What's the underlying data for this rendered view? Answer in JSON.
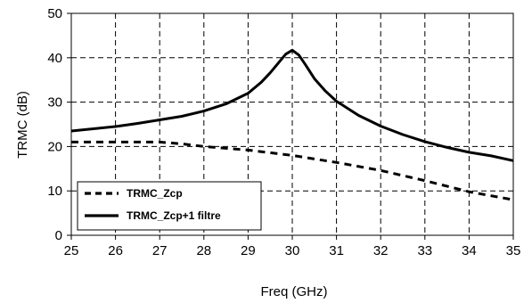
{
  "chart_data": {
    "type": "line",
    "title": "",
    "xlabel": "Freq (GHz)",
    "ylabel": "TRMC (dB)",
    "xlim": [
      25,
      35
    ],
    "ylim": [
      0,
      50
    ],
    "x_ticks": [
      "25",
      "26",
      "27",
      "28",
      "29",
      "30",
      "31",
      "32",
      "33",
      "34",
      "35"
    ],
    "y_ticks": [
      "0",
      "10",
      "20",
      "30",
      "40",
      "50"
    ],
    "grid": true,
    "legend_position": "bottom-left",
    "series": [
      {
        "name": "TRMC_Zcp",
        "style": "dashed",
        "color": "#000000",
        "x": [
          25,
          26,
          27,
          27.5,
          28,
          29,
          30,
          31,
          32,
          33,
          34,
          35
        ],
        "y": [
          21,
          21,
          21,
          20.6,
          20,
          19.2,
          18,
          16.4,
          14.6,
          12.3,
          9.8,
          8
        ]
      },
      {
        "name": "TRMC_Zcp+1 filtre",
        "style": "solid",
        "color": "#000000",
        "x": [
          25,
          25.5,
          26,
          26.5,
          27,
          27.5,
          28,
          28.5,
          29,
          29.3,
          29.5,
          29.7,
          29.85,
          30,
          30.15,
          30.3,
          30.5,
          30.75,
          31,
          31.5,
          32,
          32.5,
          33,
          33.5,
          34,
          34.5,
          35
        ],
        "y": [
          23.5,
          24,
          24.5,
          25.2,
          26,
          26.8,
          28,
          29.6,
          32,
          34.5,
          36.6,
          39,
          40.8,
          41.7,
          40.6,
          38.4,
          35.3,
          32.5,
          30.2,
          27,
          24.6,
          22.7,
          21.1,
          19.8,
          18.7,
          17.9,
          16.8
        ]
      }
    ]
  }
}
